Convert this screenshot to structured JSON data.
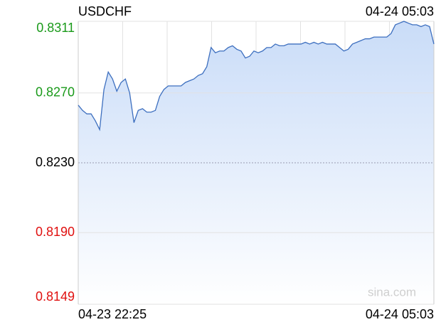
{
  "chart_data": {
    "type": "line",
    "title": "USDCHF",
    "timestamp": "04-24 05:03",
    "xlabels": [
      "04-23 22:25",
      "04-24 05:03"
    ],
    "watermark": "sina.com",
    "series": [
      {
        "name": "USDCHF",
        "color": "#3d6fbf",
        "values": [
          0.8263,
          0.826,
          0.8258,
          0.8258,
          0.8254,
          0.8249,
          0.8272,
          0.8282,
          0.8278,
          0.8271,
          0.8276,
          0.8278,
          0.827,
          0.8253,
          0.826,
          0.8261,
          0.8259,
          0.8259,
          0.826,
          0.8268,
          0.8272,
          0.8274,
          0.8274,
          0.8274,
          0.8274,
          0.8276,
          0.8277,
          0.8278,
          0.828,
          0.8281,
          0.8285,
          0.8296,
          0.8293,
          0.8294,
          0.8294,
          0.8296,
          0.8297,
          0.8295,
          0.8294,
          0.829,
          0.8291,
          0.8294,
          0.8293,
          0.8294,
          0.8296,
          0.8296,
          0.8298,
          0.8297,
          0.8297,
          0.8298,
          0.8298,
          0.8298,
          0.8298,
          0.8299,
          0.8298,
          0.8299,
          0.8298,
          0.8299,
          0.8298,
          0.8298,
          0.8298,
          0.8296,
          0.8294,
          0.8295,
          0.8298,
          0.8299,
          0.83,
          0.8301,
          0.8301,
          0.8302,
          0.8302,
          0.8302,
          0.8302,
          0.8304,
          0.8309,
          0.831,
          0.8311,
          0.831,
          0.8309,
          0.8309,
          0.8308,
          0.8309,
          0.8308,
          0.8298
        ]
      }
    ],
    "ylim": [
      0.8149,
      0.8311
    ],
    "yticks": [
      0.8311,
      {
        "value": 0.827,
        "label": "0.8270"
      },
      {
        "value": 0.823,
        "label": "0.8230"
      },
      {
        "value": 0.819,
        "label": "0.8190"
      },
      0.8149
    ],
    "up_color": "#1a9a1a",
    "down_color": "#e0100f",
    "flat_color": "#000000",
    "fill_color": "#c9dcf8",
    "grid": true
  }
}
